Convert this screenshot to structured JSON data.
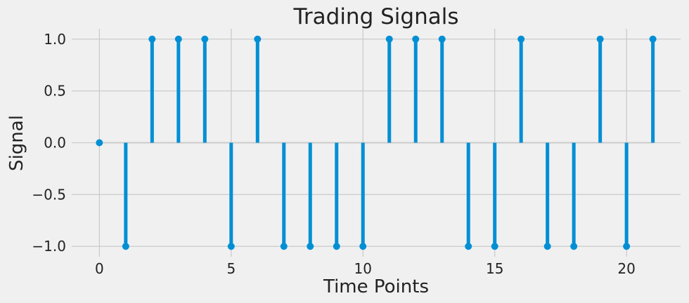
{
  "chart_data": {
    "type": "stem",
    "title": "Trading Signals",
    "xlabel": "Time Points",
    "ylabel": "Signal",
    "x": [
      0,
      1,
      2,
      3,
      4,
      5,
      6,
      7,
      8,
      9,
      10,
      11,
      12,
      13,
      14,
      15,
      16,
      17,
      18,
      19,
      20,
      21
    ],
    "values": [
      0,
      -1,
      1,
      1,
      1,
      -1,
      1,
      -1,
      -1,
      -1,
      -1,
      1,
      1,
      1,
      -1,
      -1,
      1,
      -1,
      -1,
      1,
      -1,
      1
    ],
    "xlim": [
      -1.05,
      22.05
    ],
    "ylim": [
      -1.1,
      1.1
    ],
    "xticks": [
      0,
      5,
      10,
      15,
      20
    ],
    "xtick_labels": [
      "0",
      "5",
      "10",
      "15",
      "20"
    ],
    "yticks": [
      -1.0,
      -0.5,
      0.0,
      0.5,
      1.0
    ],
    "ytick_labels": [
      "−1.0",
      "−0.5",
      "0.0",
      "0.5",
      "1.0"
    ],
    "grid": true,
    "legend": "none",
    "colors": {
      "series": "#008fd5",
      "background": "#f0f0f0",
      "grid": "#cbcbcb",
      "baseline": "#cbcbcb",
      "text": "#222222"
    }
  }
}
